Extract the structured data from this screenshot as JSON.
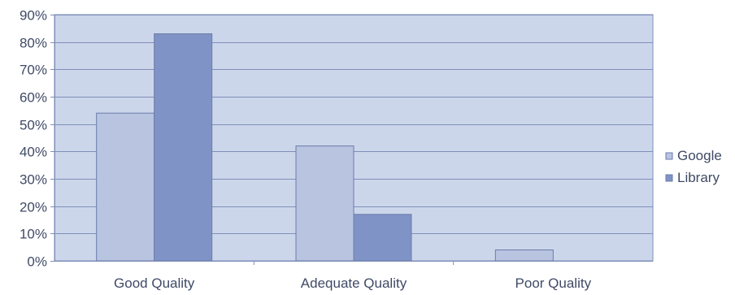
{
  "chart_data": {
    "type": "bar",
    "categories": [
      "Good Quality",
      "Adequate Quality",
      "Poor Quality"
    ],
    "series": [
      {
        "name": "Google",
        "values": [
          54,
          42,
          4
        ],
        "color": "#b8c4e0"
      },
      {
        "name": "Library",
        "values": [
          83,
          17,
          0
        ],
        "color": "#7f93c6"
      }
    ],
    "ylim": [
      0,
      90
    ],
    "yticks": [
      "0%",
      "10%",
      "20%",
      "30%",
      "40%",
      "50%",
      "60%",
      "70%",
      "80%",
      "90%"
    ],
    "grid": true,
    "legend": "right",
    "plot_background": "#ccd6eb",
    "grid_color": "#7f8fb8"
  }
}
